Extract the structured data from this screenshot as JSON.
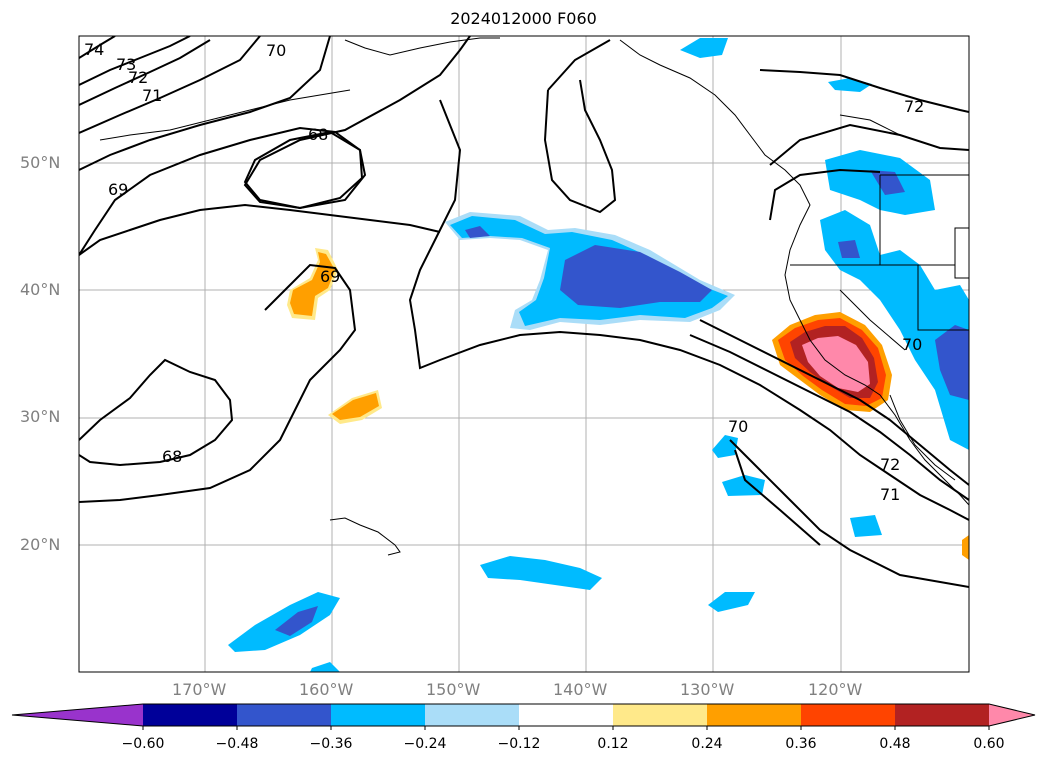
{
  "title": "2024012000 F060",
  "lat_labels": [
    "50°N",
    "40°N",
    "30°N",
    "20°N"
  ],
  "lon_labels": [
    "170°W",
    "160°W",
    "150°W",
    "140°W",
    "130°W",
    "120°W"
  ],
  "contour_labels": [
    "74",
    "73",
    "72",
    "71",
    "70",
    "68",
    "69",
    "69",
    "68",
    "72",
    "72",
    "71",
    "70",
    "70"
  ],
  "colorbar": {
    "colors": [
      "#9933cc",
      "#000099",
      "#3355cc",
      "#00bbff",
      "#aaddf8",
      "#ffffff",
      "#ffe98a",
      "#ff9f00",
      "#ff4400",
      "#b22222",
      "#ff88aa"
    ],
    "tick_labels": [
      "−0.60",
      "−0.48",
      "−0.36",
      "−0.24",
      "−0.12",
      "0.12",
      "0.24",
      "0.36",
      "0.48",
      "0.60"
    ]
  }
}
